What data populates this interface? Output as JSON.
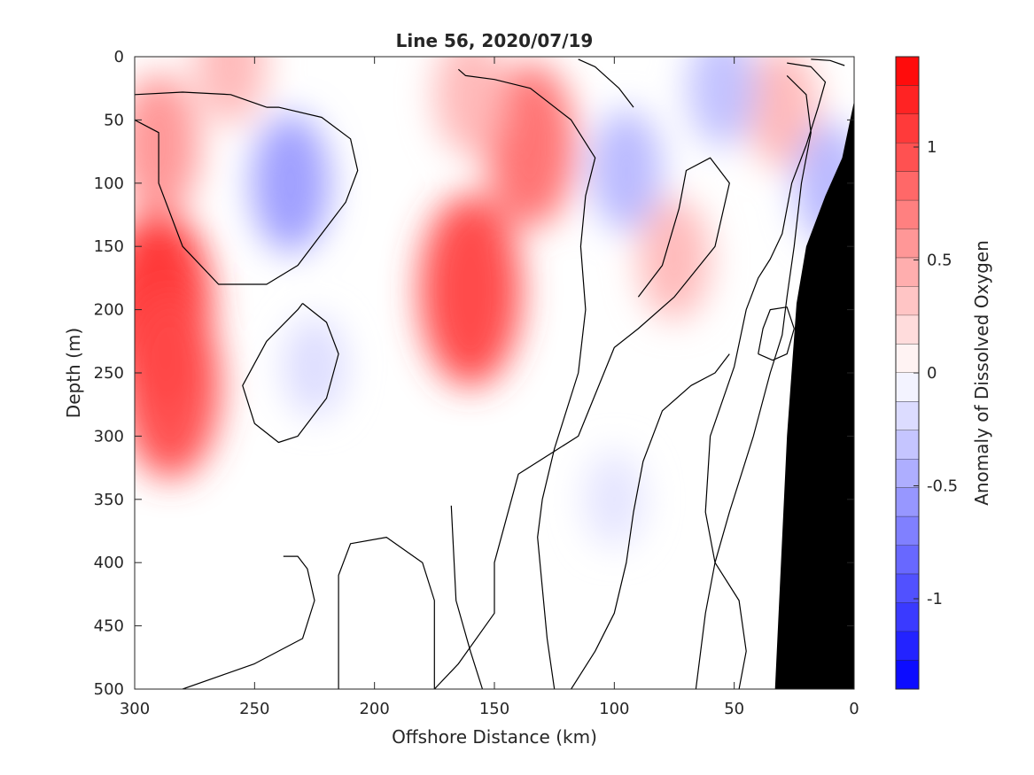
{
  "chart_data": {
    "type": "heatmap",
    "title": "Line 56, 2020/07/19",
    "xlabel": "Offshore Distance (km)",
    "ylabel": "Depth (m)",
    "x_reversed": true,
    "y_reversed": true,
    "xlim": [
      0,
      300
    ],
    "ylim": [
      0,
      500
    ],
    "x_ticks": [
      300,
      250,
      200,
      150,
      100,
      50,
      0
    ],
    "y_ticks": [
      0,
      50,
      100,
      150,
      200,
      250,
      300,
      350,
      400,
      450,
      500
    ],
    "colorbar": {
      "label": "Anomaly of Dissolved Oxygen",
      "range": [
        -1.4,
        1.4
      ],
      "ticks": [
        1,
        0.5,
        0,
        -0.5,
        -1
      ],
      "tick_labels": [
        "1",
        "0.5",
        "0",
        "-0.5",
        "-1"
      ],
      "levels": 22,
      "low_color": "#0000ff",
      "mid_color": "#ffffff",
      "high_color": "#ff0000"
    },
    "features": [
      {
        "name": "positive anomaly",
        "x": 290,
        "y": 200,
        "value": 1.15
      },
      {
        "name": "positive anomaly",
        "x": 285,
        "y": 260,
        "value": 1.0
      },
      {
        "name": "positive anomaly",
        "x": 290,
        "y": 70,
        "value": 0.6
      },
      {
        "name": "positive anomaly",
        "x": 260,
        "y": 5,
        "value": 0.4
      },
      {
        "name": "positive anomaly",
        "x": 160,
        "y": 185,
        "value": 1.05
      },
      {
        "name": "positive anomaly",
        "x": 135,
        "y": 70,
        "value": 0.8
      },
      {
        "name": "positive anomaly",
        "x": 160,
        "y": 30,
        "value": 0.4
      },
      {
        "name": "positive anomaly",
        "x": 75,
        "y": 160,
        "value": 0.4
      },
      {
        "name": "positive anomaly",
        "x": 30,
        "y": 40,
        "value": 0.4
      },
      {
        "name": "negative anomaly",
        "x": 235,
        "y": 100,
        "value": -0.55
      },
      {
        "name": "negative anomaly",
        "x": 225,
        "y": 245,
        "value": -0.2
      },
      {
        "name": "negative anomaly",
        "x": 95,
        "y": 90,
        "value": -0.4
      },
      {
        "name": "negative anomaly",
        "x": 55,
        "y": 25,
        "value": -0.35
      },
      {
        "name": "negative anomaly",
        "x": 10,
        "y": 100,
        "value": -0.4
      },
      {
        "name": "negative anomaly",
        "x": 100,
        "y": 350,
        "value": -0.15
      }
    ],
    "seafloor": [
      [
        33,
        500
      ],
      [
        28,
        300
      ],
      [
        24,
        195
      ],
      [
        20,
        150
      ],
      [
        12,
        110
      ],
      [
        5,
        80
      ],
      [
        0,
        35
      ]
    ],
    "zero_contours": [
      [
        [
          245,
          40
        ],
        [
          260,
          30
        ],
        [
          280,
          28
        ],
        [
          300,
          30
        ],
        [
          305,
          45
        ],
        [
          290,
          60
        ],
        [
          290,
          100
        ],
        [
          280,
          150
        ],
        [
          265,
          180
        ],
        [
          245,
          180
        ],
        [
          232,
          165
        ],
        [
          222,
          140
        ],
        [
          212,
          115
        ],
        [
          207,
          90
        ],
        [
          210,
          65
        ],
        [
          222,
          48
        ],
        [
          240,
          40
        ],
        [
          245,
          40
        ]
      ],
      [
        [
          230,
          195
        ],
        [
          220,
          210
        ],
        [
          215,
          235
        ],
        [
          220,
          270
        ],
        [
          232,
          300
        ],
        [
          240,
          305
        ],
        [
          250,
          290
        ],
        [
          255,
          260
        ],
        [
          245,
          225
        ],
        [
          232,
          200
        ],
        [
          230,
          195
        ]
      ],
      [
        [
          168,
          355
        ],
        [
          166,
          430
        ],
        [
          160,
          470
        ],
        [
          155,
          500
        ]
      ],
      [
        [
          280,
          500
        ],
        [
          250,
          480
        ],
        [
          230,
          460
        ],
        [
          225,
          430
        ],
        [
          228,
          405
        ],
        [
          232,
          395
        ],
        [
          238,
          395
        ]
      ],
      [
        [
          175,
          500
        ],
        [
          175,
          430
        ],
        [
          180,
          400
        ],
        [
          195,
          380
        ],
        [
          210,
          385
        ],
        [
          215,
          410
        ],
        [
          215,
          500
        ]
      ],
      [
        [
          125,
          500
        ],
        [
          128,
          460
        ],
        [
          130,
          420
        ],
        [
          132,
          380
        ],
        [
          130,
          350
        ],
        [
          125,
          310
        ],
        [
          115,
          250
        ],
        [
          112,
          200
        ],
        [
          114,
          150
        ],
        [
          112,
          110
        ],
        [
          108,
          80
        ],
        [
          118,
          50
        ],
        [
          135,
          25
        ],
        [
          150,
          18
        ],
        [
          162,
          15
        ],
        [
          165,
          10
        ]
      ],
      [
        [
          92,
          40
        ],
        [
          98,
          25
        ],
        [
          108,
          8
        ],
        [
          115,
          2
        ]
      ],
      [
        [
          90,
          190
        ],
        [
          80,
          165
        ],
        [
          73,
          120
        ],
        [
          70,
          90
        ],
        [
          60,
          80
        ],
        [
          52,
          100
        ],
        [
          58,
          150
        ],
        [
          75,
          190
        ],
        [
          90,
          215
        ],
        [
          100,
          230
        ],
        [
          115,
          300
        ],
        [
          140,
          330
        ],
        [
          150,
          400
        ],
        [
          150,
          440
        ],
        [
          165,
          480
        ],
        [
          175,
          500
        ]
      ],
      [
        [
          48,
          500
        ],
        [
          45,
          470
        ],
        [
          48,
          430
        ],
        [
          58,
          400
        ],
        [
          62,
          360
        ],
        [
          60,
          300
        ],
        [
          50,
          245
        ],
        [
          45,
          200
        ],
        [
          40,
          175
        ],
        [
          35,
          160
        ],
        [
          30,
          140
        ],
        [
          26,
          100
        ],
        [
          20,
          70
        ],
        [
          15,
          40
        ],
        [
          12,
          20
        ],
        [
          18,
          8
        ],
        [
          28,
          5
        ]
      ],
      [
        [
          66,
          500
        ],
        [
          64,
          470
        ],
        [
          62,
          440
        ],
        [
          58,
          400
        ],
        [
          52,
          360
        ],
        [
          42,
          300
        ],
        [
          35,
          250
        ],
        [
          30,
          220
        ],
        [
          28,
          190
        ],
        [
          25,
          150
        ],
        [
          22,
          100
        ],
        [
          18,
          60
        ],
        [
          20,
          30
        ],
        [
          28,
          15
        ]
      ],
      [
        [
          118,
          500
        ],
        [
          108,
          470
        ],
        [
          100,
          440
        ],
        [
          95,
          400
        ],
        [
          92,
          360
        ],
        [
          88,
          320
        ],
        [
          80,
          280
        ],
        [
          68,
          260
        ],
        [
          58,
          250
        ],
        [
          52,
          235
        ]
      ],
      [
        [
          40,
          235
        ],
        [
          38,
          215
        ],
        [
          35,
          200
        ],
        [
          28,
          198
        ],
        [
          25,
          215
        ],
        [
          28,
          235
        ],
        [
          34,
          240
        ],
        [
          40,
          235
        ]
      ],
      [
        [
          4,
          7
        ],
        [
          10,
          3
        ],
        [
          18,
          2
        ]
      ]
    ]
  }
}
